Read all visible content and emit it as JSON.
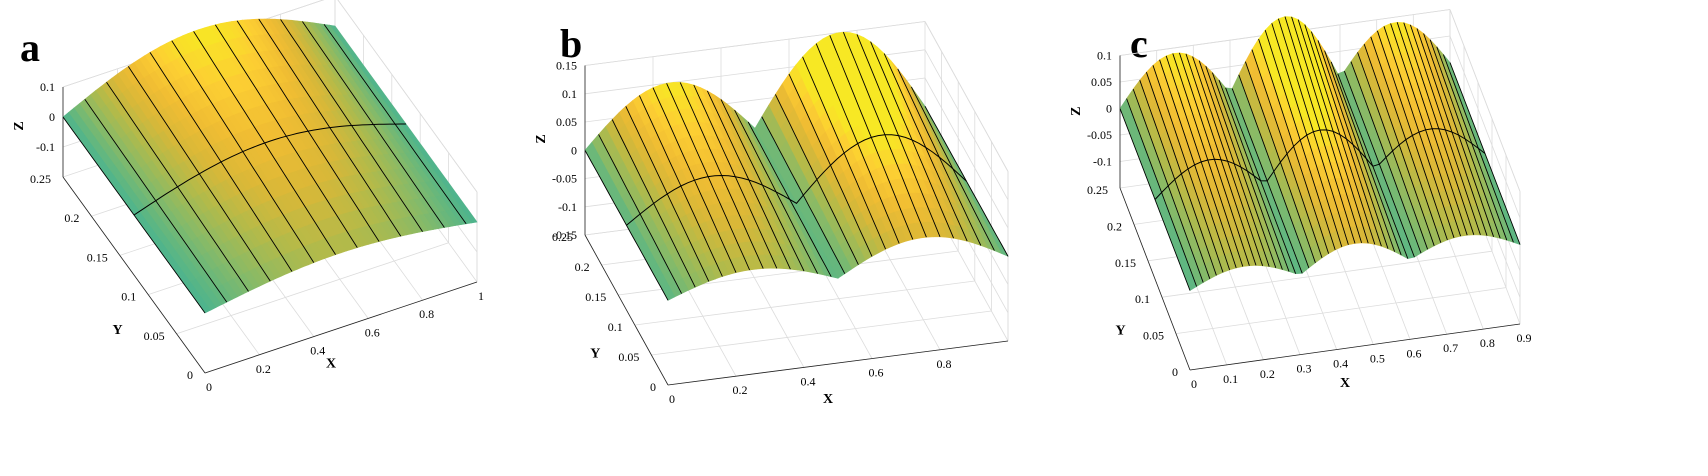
{
  "chart_data": [
    {
      "panel": "a",
      "type": "surface",
      "xlabel": "X",
      "ylabel": "Y",
      "zlabel": "Z",
      "xlim": [
        0,
        1
      ],
      "ylim": [
        0,
        0.25
      ],
      "zlim": [
        -0.2,
        0.1
      ],
      "xticks": [
        "0",
        "0.2",
        "0.4",
        "0.6",
        "0.8",
        "1"
      ],
      "yticks": [
        "0",
        "0.05",
        "0.1",
        "0.15",
        "0.2",
        "0.25"
      ],
      "zticks": [
        "-0.1",
        "0",
        "0.1"
      ],
      "peaks": 1,
      "amplitude_max": 0.14,
      "amplitude_min": -0.19,
      "colormap": "parula",
      "grid": true
    },
    {
      "panel": "b",
      "type": "surface",
      "xlabel": "X",
      "ylabel": "Y",
      "zlabel": "Z",
      "xlim": [
        0,
        1
      ],
      "ylim": [
        0,
        0.25
      ],
      "zlim": [
        -0.15,
        0.15
      ],
      "xticks": [
        "0",
        "0.2",
        "0.4",
        "0.6",
        "0.8"
      ],
      "yticks": [
        "0",
        "0.05",
        "0.1",
        "0.15",
        "0.2",
        "0.25"
      ],
      "zticks": [
        "-0.15",
        "-0.1",
        "-0.05",
        "0",
        "0.05",
        "0.1",
        "0.15"
      ],
      "peaks": 2,
      "amplitude_max": 0.1,
      "amplitude_min": -0.15,
      "colormap": "parula",
      "grid": true
    },
    {
      "panel": "c",
      "type": "surface",
      "xlabel": "X",
      "ylabel": "Y",
      "zlabel": "Z",
      "xlim": [
        0,
        0.9
      ],
      "ylim": [
        0,
        0.25
      ],
      "zlim": [
        -0.15,
        0.1
      ],
      "xticks": [
        "0",
        "0.1",
        "0.2",
        "0.3",
        "0.4",
        "0.5",
        "0.6",
        "0.7",
        "0.8",
        "0.9"
      ],
      "yticks": [
        "0",
        "0.05",
        "0.1",
        "0.15",
        "0.2",
        "0.25"
      ],
      "zticks": [
        "-0.1",
        "-0.05",
        "0",
        "0.05",
        "0.1"
      ],
      "peaks": 3,
      "amplitude_max": 0.09,
      "amplitude_min": -0.13,
      "colormap": "parula",
      "grid": true
    }
  ],
  "panels": [
    {
      "letter": "a"
    },
    {
      "letter": "b"
    },
    {
      "letter": "c"
    }
  ]
}
